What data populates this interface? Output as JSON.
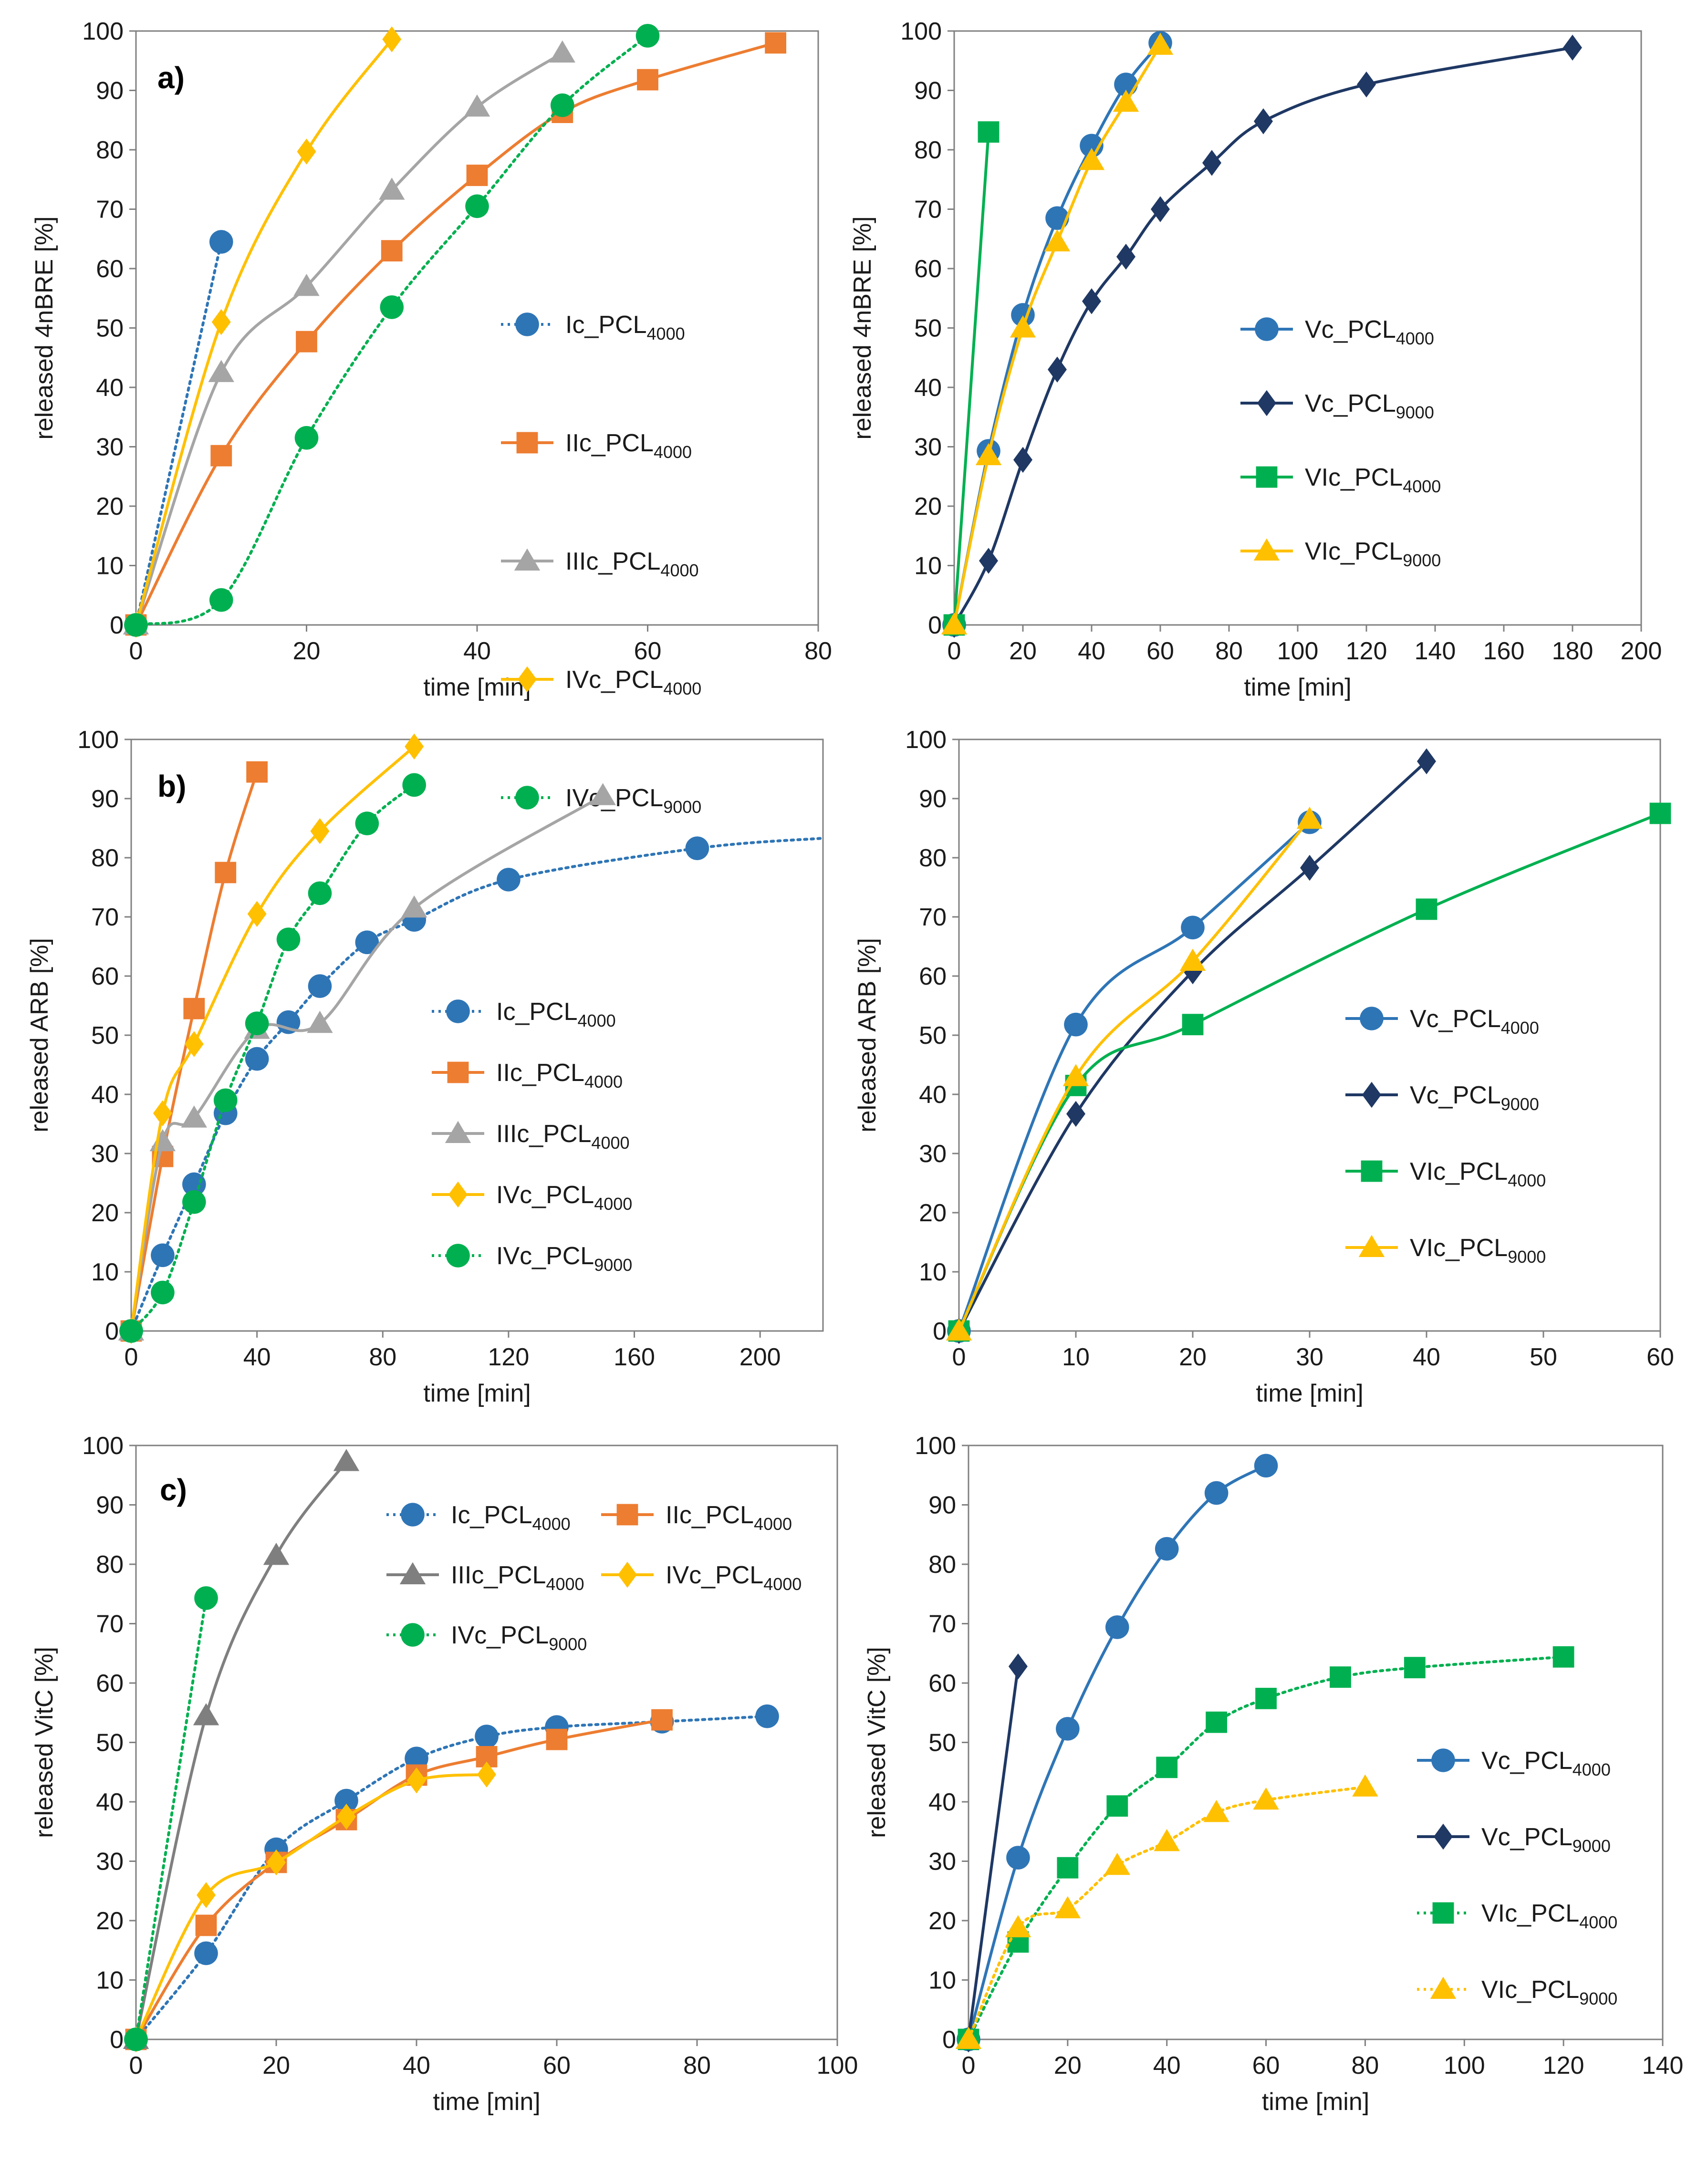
{
  "chart_data": [
    {
      "type": "line",
      "panel_label": "a)",
      "xlabel": "time [min]",
      "ylabel": "released 4nBRE [%]",
      "xlim": [
        0,
        80
      ],
      "ylim": [
        0,
        100
      ],
      "xticks": [
        0,
        20,
        40,
        60,
        80
      ],
      "yticks": [
        0,
        10,
        20,
        30,
        40,
        50,
        60,
        70,
        80,
        90,
        100
      ],
      "legend_position": "center-right",
      "series": [
        {
          "name": "Ic_PCL4000",
          "legend_main": "Ic_PCL",
          "legend_sub": "4000",
          "color": "#2E75B6",
          "marker": "circle",
          "dash": "dotted",
          "x": [
            0,
            10
          ],
          "y": [
            0,
            64.5
          ]
        },
        {
          "name": "IIc_PCL4000",
          "legend_main": "IIc_PCL",
          "legend_sub": "4000",
          "color": "#ED7D31",
          "marker": "square",
          "dash": "solid",
          "x": [
            0,
            10,
            20,
            30,
            40,
            50,
            60,
            75
          ],
          "y": [
            0,
            28.5,
            47.7,
            63.0,
            75.7,
            86.3,
            91.8,
            98.0
          ]
        },
        {
          "name": "IIIc_PCL4000",
          "legend_main": "IIIc_PCL",
          "legend_sub": "4000",
          "color": "#A5A5A5",
          "marker": "triangle",
          "dash": "solid",
          "x": [
            0,
            10,
            20,
            30,
            40,
            50
          ],
          "y": [
            0,
            42.5,
            57.0,
            73.2,
            87.2,
            96.3
          ]
        },
        {
          "name": "IVc_PCL4000",
          "legend_main": "IVc_PCL",
          "legend_sub": "4000",
          "color": "#FFC000",
          "marker": "diamond",
          "dash": "solid",
          "x": [
            0,
            10,
            20,
            30
          ],
          "y": [
            0,
            51.0,
            79.7,
            98.6
          ]
        },
        {
          "name": "IVc_PCL9000",
          "legend_main": "IVc_PCL",
          "legend_sub": "9000",
          "color": "#00B050",
          "marker": "circle",
          "dash": "dotted",
          "x": [
            0,
            10,
            20,
            30,
            40,
            50,
            60
          ],
          "y": [
            0,
            4.2,
            31.5,
            53.5,
            70.5,
            87.5,
            99.2
          ]
        }
      ]
    },
    {
      "type": "line",
      "panel_label": "",
      "xlabel": "time [min]",
      "ylabel": "released 4nBRE [%]",
      "xlim": [
        0,
        200
      ],
      "ylim": [
        0,
        100
      ],
      "xticks": [
        0,
        20,
        40,
        60,
        80,
        100,
        120,
        140,
        160,
        180,
        200
      ],
      "yticks": [
        0,
        10,
        20,
        30,
        40,
        50,
        60,
        70,
        80,
        90,
        100
      ],
      "legend_position": "center-right",
      "series": [
        {
          "name": "Vc_PCL4000",
          "legend_main": "Vc_PCL",
          "legend_sub": "4000",
          "color": "#2E75B6",
          "marker": "circle",
          "dash": "solid",
          "x": [
            0,
            10,
            20,
            30,
            40,
            50,
            60
          ],
          "y": [
            0,
            29.3,
            52.2,
            68.5,
            80.7,
            91.0,
            98.0
          ]
        },
        {
          "name": "Vc_PCL9000",
          "legend_main": "Vc_PCL",
          "legend_sub": "9000",
          "color": "#1F3864",
          "marker": "diamond",
          "dash": "solid",
          "x": [
            0,
            10,
            20,
            30,
            40,
            50,
            60,
            75,
            90,
            120,
            180
          ],
          "y": [
            0,
            10.8,
            27.8,
            43.0,
            54.5,
            62.0,
            70.0,
            77.8,
            84.8,
            91.0,
            97.2
          ]
        },
        {
          "name": "VIc_PCL4000",
          "legend_main": "VIc_PCL",
          "legend_sub": "4000",
          "color": "#00B050",
          "marker": "square",
          "dash": "solid",
          "x": [
            0,
            10
          ],
          "y": [
            0,
            83.0
          ]
        },
        {
          "name": "VIc_PCL9000",
          "legend_main": "VIc_PCL",
          "legend_sub": "9000",
          "color": "#FFC000",
          "marker": "triangle",
          "dash": "solid",
          "x": [
            0,
            10,
            20,
            30,
            40,
            50,
            60
          ],
          "y": [
            0,
            28.5,
            50.0,
            64.5,
            78.2,
            88.0,
            97.6
          ]
        }
      ]
    },
    {
      "type": "line",
      "panel_label": "b)",
      "xlabel": "time [min]",
      "ylabel": "released ARB [%]",
      "xlim": [
        0,
        220
      ],
      "ylim": [
        0,
        100
      ],
      "xticks": [
        0,
        40,
        80,
        120,
        160,
        200
      ],
      "yticks": [
        0,
        10,
        20,
        30,
        40,
        50,
        60,
        70,
        80,
        90,
        100
      ],
      "legend_position": "center-right",
      "series": [
        {
          "name": "Ic_PCL4000",
          "legend_main": "Ic_PCL",
          "legend_sub": "4000",
          "color": "#2E75B6",
          "marker": "circle",
          "dash": "dotted",
          "x": [
            0,
            10,
            20,
            30,
            40,
            50,
            60,
            75,
            90,
            120,
            180
          ],
          "y": [
            0,
            12.8,
            24.8,
            36.8,
            46.0,
            52.2,
            58.3,
            65.7,
            69.5,
            76.3,
            81.6
          ],
          "extend_to": [
            220,
            83.3
          ]
        },
        {
          "name": "IIc_PCL4000",
          "legend_main": "IIc_PCL",
          "legend_sub": "4000",
          "color": "#ED7D31",
          "marker": "square",
          "dash": "solid",
          "x": [
            0,
            10,
            20,
            30,
            40
          ],
          "y": [
            0,
            29.5,
            54.5,
            77.5,
            94.5
          ]
        },
        {
          "name": "IIIc_PCL4000",
          "legend_main": "IIIc_PCL",
          "legend_sub": "4000",
          "color": "#A5A5A5",
          "marker": "triangle",
          "dash": "solid",
          "x": [
            0,
            10,
            20,
            40,
            60,
            90,
            150
          ],
          "y": [
            0,
            32.0,
            36.0,
            51.0,
            52.0,
            71.5,
            90.5
          ]
        },
        {
          "name": "IVc_PCL4000",
          "legend_main": "IVc_PCL",
          "legend_sub": "4000",
          "color": "#FFC000",
          "marker": "diamond",
          "dash": "solid",
          "x": [
            0,
            10,
            20,
            40,
            60,
            90
          ],
          "y": [
            0,
            36.8,
            48.5,
            70.5,
            84.5,
            98.8
          ]
        },
        {
          "name": "IVc_PCL9000",
          "legend_main": "IVc_PCL",
          "legend_sub": "9000",
          "color": "#00B050",
          "marker": "circle",
          "dash": "dotted",
          "x": [
            0,
            10,
            20,
            30,
            40,
            50,
            60,
            75,
            90
          ],
          "y": [
            0,
            6.5,
            21.8,
            39.0,
            52.0,
            66.2,
            74.0,
            85.8,
            92.3
          ]
        }
      ]
    },
    {
      "type": "line",
      "panel_label": "",
      "xlabel": "time [min]",
      "ylabel": "released ARB [%]",
      "xlim": [
        0,
        60
      ],
      "ylim": [
        0,
        100
      ],
      "xticks": [
        0,
        10,
        20,
        30,
        40,
        50,
        60
      ],
      "yticks": [
        0,
        10,
        20,
        30,
        40,
        50,
        60,
        70,
        80,
        90,
        100
      ],
      "legend_position": "center-right",
      "series": [
        {
          "name": "Vc_PCL4000",
          "legend_main": "Vc_PCL",
          "legend_sub": "4000",
          "color": "#2E75B6",
          "marker": "circle",
          "dash": "solid",
          "x": [
            0,
            10,
            20,
            30
          ],
          "y": [
            0,
            51.8,
            68.2,
            86.0
          ]
        },
        {
          "name": "Vc_PCL9000",
          "legend_main": "Vc_PCL",
          "legend_sub": "9000",
          "color": "#1F3864",
          "marker": "diamond",
          "dash": "solid",
          "x": [
            0,
            10,
            20,
            30,
            40
          ],
          "y": [
            0,
            36.7,
            60.8,
            78.3,
            96.3
          ]
        },
        {
          "name": "VIc_PCL4000",
          "legend_main": "VIc_PCL",
          "legend_sub": "4000",
          "color": "#00B050",
          "marker": "square",
          "dash": "solid",
          "x": [
            0,
            10,
            20,
            40,
            60
          ],
          "y": [
            0,
            41.5,
            51.8,
            71.3,
            87.5
          ]
        },
        {
          "name": "VIc_PCL9000",
          "legend_main": "VIc_PCL",
          "legend_sub": "9000",
          "color": "#FFC000",
          "marker": "triangle",
          "dash": "solid",
          "x": [
            0,
            10,
            20,
            30
          ],
          "y": [
            0,
            43.0,
            62.5,
            86.5
          ]
        }
      ]
    },
    {
      "type": "line",
      "panel_label": "c)",
      "xlabel": "time [min]",
      "ylabel": "released VitC [%]",
      "xlim": [
        0,
        100
      ],
      "ylim": [
        0,
        100
      ],
      "xticks": [
        0,
        20,
        40,
        60,
        80,
        100
      ],
      "yticks": [
        0,
        10,
        20,
        30,
        40,
        50,
        60,
        70,
        80,
        90,
        100
      ],
      "legend_position": "top-right",
      "series": [
        {
          "name": "Ic_PCL4000",
          "legend_main": "Ic_PCL",
          "legend_sub": "4000",
          "color": "#2E75B6",
          "marker": "circle",
          "dash": "dotted",
          "x": [
            0,
            10,
            20,
            30,
            40,
            50,
            60,
            75,
            90
          ],
          "y": [
            0,
            14.5,
            32.0,
            40.2,
            47.3,
            51.0,
            52.6,
            53.5,
            54.4
          ]
        },
        {
          "name": "IIc_PCL4000",
          "legend_main": "IIc_PCL",
          "legend_sub": "4000",
          "color": "#ED7D31",
          "marker": "square",
          "dash": "solid",
          "x": [
            0,
            10,
            20,
            30,
            40,
            50,
            60,
            75
          ],
          "y": [
            0,
            19.2,
            29.8,
            37.0,
            44.5,
            47.6,
            50.5,
            53.8
          ]
        },
        {
          "name": "IIIc_PCL4000",
          "legend_main": "IIIc_PCL",
          "legend_sub": "4000",
          "color": "#7F7F7F",
          "marker": "triangle",
          "dash": "solid",
          "x": [
            0,
            10,
            20,
            30
          ],
          "y": [
            0,
            54.5,
            81.5,
            97.3
          ]
        },
        {
          "name": "IVc_PCL4000",
          "legend_main": "IVc_PCL",
          "legend_sub": "4000",
          "color": "#FFC000",
          "marker": "diamond",
          "dash": "solid",
          "x": [
            0,
            10,
            20,
            30,
            40,
            50
          ],
          "y": [
            0,
            24.3,
            29.8,
            37.5,
            43.6,
            44.6
          ]
        },
        {
          "name": "IVc_PCL9000",
          "legend_main": "IVc_PCL",
          "legend_sub": "9000",
          "color": "#00B050",
          "marker": "circle",
          "dash": "dotted",
          "x": [
            0,
            10
          ],
          "y": [
            0,
            74.3
          ]
        }
      ]
    },
    {
      "type": "line",
      "panel_label": "",
      "xlabel": "time [min]",
      "ylabel": "released VitC [%]",
      "xlim": [
        0,
        140
      ],
      "ylim": [
        0,
        100
      ],
      "xticks": [
        0,
        20,
        40,
        60,
        80,
        100,
        120,
        140
      ],
      "yticks": [
        0,
        10,
        20,
        30,
        40,
        50,
        60,
        70,
        80,
        90,
        100
      ],
      "legend_position": "center-right",
      "series": [
        {
          "name": "Vc_PCL4000",
          "legend_main": "Vc_PCL",
          "legend_sub": "4000",
          "color": "#2E75B6",
          "marker": "circle",
          "dash": "solid",
          "x": [
            0,
            10,
            20,
            30,
            40,
            50,
            60
          ],
          "y": [
            0,
            30.6,
            52.3,
            69.4,
            82.6,
            92.0,
            96.6
          ]
        },
        {
          "name": "Vc_PCL9000",
          "legend_main": "Vc_PCL",
          "legend_sub": "9000",
          "color": "#1F3864",
          "marker": "diamond",
          "dash": "solid",
          "x": [
            0,
            10
          ],
          "y": [
            0,
            62.8
          ]
        },
        {
          "name": "VIc_PCL4000",
          "legend_main": "VIc_PCL",
          "legend_sub": "4000",
          "color": "#00B050",
          "marker": "square",
          "dash": "dotted",
          "x": [
            0,
            10,
            20,
            30,
            40,
            50,
            60,
            75,
            90,
            120
          ],
          "y": [
            0,
            16.4,
            28.9,
            39.3,
            45.8,
            53.4,
            57.4,
            61.0,
            62.6,
            64.4
          ]
        },
        {
          "name": "VIc_PCL9000",
          "legend_main": "VIc_PCL",
          "legend_sub": "9000",
          "color": "#FFC000",
          "marker": "triangle",
          "dash": "dotted",
          "x": [
            0,
            10,
            20,
            30,
            40,
            50,
            60,
            80
          ],
          "y": [
            0,
            18.8,
            22.0,
            29.3,
            33.3,
            38.2,
            40.3,
            42.5
          ]
        }
      ]
    }
  ]
}
